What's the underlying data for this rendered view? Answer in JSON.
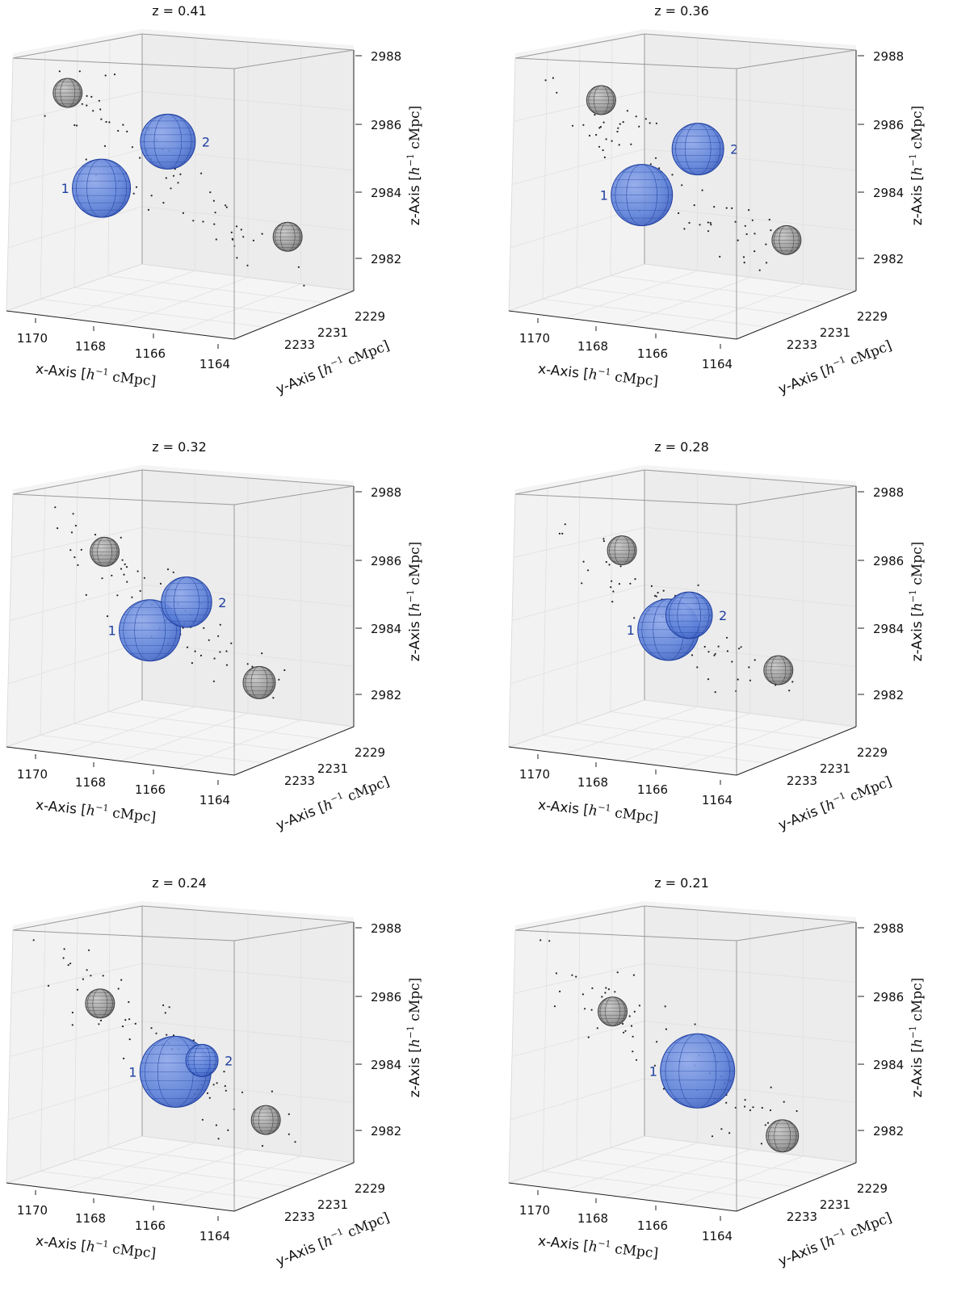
{
  "figure": {
    "x_ticks": [
      "1170",
      "1168",
      "1166",
      "1164"
    ],
    "y_ticks": [
      "2229",
      "2231",
      "2233"
    ],
    "z_ticks": [
      "2988",
      "2986",
      "2984",
      "2982"
    ],
    "xlabel_prefix": "x-Axis [",
    "ylabel_prefix": "y-Axis [",
    "zlabel_prefix": "z-Axis [",
    "unit_h": "h",
    "unit_exp": "−1",
    "unit_tail": "cMpc]",
    "colors": {
      "highlight": "#4a6fd0",
      "highlight_edge": "#1f3fa0",
      "label": "#1f3fa0",
      "neutral": "#8c8c8c",
      "neutral_edge": "#404040",
      "points": "#222222"
    }
  },
  "chart_data": [
    {
      "type": "scatter3d",
      "title": "z = 0.41",
      "xlim": [
        1164,
        1171
      ],
      "ylim": [
        2228,
        2234
      ],
      "zlim": [
        2981,
        2988
      ],
      "spheres": [
        {
          "label": "1",
          "highlight": true,
          "x": 1169.4,
          "y": 2231.0,
          "z": 2984.3,
          "r": 0.9
        },
        {
          "label": "2",
          "highlight": true,
          "x": 1167.2,
          "y": 2230.2,
          "z": 2985.6,
          "r": 0.85
        },
        {
          "label": "",
          "highlight": false,
          "x": 1170.2,
          "y": 2230.5,
          "z": 2987.4,
          "r": 0.45
        },
        {
          "label": "",
          "highlight": false,
          "x": 1164.3,
          "y": 2231.8,
          "z": 2982.4,
          "r": 0.45
        }
      ],
      "seed": 11
    },
    {
      "type": "scatter3d",
      "title": "z = 0.36",
      "xlim": [
        1164,
        1171
      ],
      "ylim": [
        2228,
        2234
      ],
      "zlim": [
        2981,
        2988
      ],
      "spheres": [
        {
          "label": "1",
          "highlight": true,
          "x": 1168.3,
          "y": 2231.0,
          "z": 2984.0,
          "r": 0.95
        },
        {
          "label": "2",
          "highlight": true,
          "x": 1166.4,
          "y": 2230.2,
          "z": 2985.3,
          "r": 0.8
        },
        {
          "label": "",
          "highlight": false,
          "x": 1169.3,
          "y": 2230.5,
          "z": 2987.1,
          "r": 0.45
        },
        {
          "label": "",
          "highlight": false,
          "x": 1164.4,
          "y": 2231.8,
          "z": 2982.3,
          "r": 0.45
        }
      ],
      "seed": 23
    },
    {
      "type": "scatter3d",
      "title": "z = 0.32",
      "xlim": [
        1164,
        1171
      ],
      "ylim": [
        2228,
        2234
      ],
      "zlim": [
        2981,
        2988
      ],
      "spheres": [
        {
          "label": "1",
          "highlight": true,
          "x": 1168.0,
          "y": 2231.0,
          "z": 2984.0,
          "r": 0.95
        },
        {
          "label": "2",
          "highlight": true,
          "x": 1166.8,
          "y": 2230.6,
          "z": 2984.8,
          "r": 0.78
        },
        {
          "label": "",
          "highlight": false,
          "x": 1169.2,
          "y": 2230.7,
          "z": 2986.6,
          "r": 0.45
        },
        {
          "label": "",
          "highlight": false,
          "x": 1165.4,
          "y": 2232.6,
          "z": 2982.2,
          "r": 0.5
        }
      ],
      "seed": 37
    },
    {
      "type": "scatter3d",
      "title": "z = 0.28",
      "xlim": [
        1164,
        1171
      ],
      "ylim": [
        2228,
        2234
      ],
      "zlim": [
        2981,
        2988
      ],
      "spheres": [
        {
          "label": "1",
          "highlight": true,
          "x": 1167.6,
          "y": 2231.2,
          "z": 2984.0,
          "r": 0.95
        },
        {
          "label": "2",
          "highlight": true,
          "x": 1166.9,
          "y": 2230.9,
          "z": 2984.4,
          "r": 0.72
        },
        {
          "label": "",
          "highlight": false,
          "x": 1168.7,
          "y": 2230.5,
          "z": 2986.6,
          "r": 0.45
        },
        {
          "label": "",
          "highlight": false,
          "x": 1164.6,
          "y": 2231.7,
          "z": 2982.5,
          "r": 0.45
        }
      ],
      "seed": 41
    },
    {
      "type": "scatter3d",
      "title": "z = 0.24",
      "xlim": [
        1164,
        1171
      ],
      "ylim": [
        2228,
        2234
      ],
      "zlim": [
        2981,
        2988
      ],
      "spheres": [
        {
          "label": "1",
          "highlight": true,
          "x": 1167.4,
          "y": 2231.4,
          "z": 2983.8,
          "r": 1.1
        },
        {
          "label": "2",
          "highlight": true,
          "x": 1166.6,
          "y": 2231.3,
          "z": 2984.1,
          "r": 0.5
        },
        {
          "label": "",
          "highlight": false,
          "x": 1169.3,
          "y": 2230.6,
          "z": 2986.1,
          "r": 0.45
        },
        {
          "label": "",
          "highlight": false,
          "x": 1165.0,
          "y": 2232.0,
          "z": 2982.1,
          "r": 0.45
        }
      ],
      "seed": 53
    },
    {
      "type": "scatter3d",
      "title": "z = 0.21",
      "xlim": [
        1164,
        1171
      ],
      "ylim": [
        2228,
        2234
      ],
      "zlim": [
        2981,
        2988
      ],
      "spheres": [
        {
          "label": "1",
          "highlight": true,
          "x": 1166.9,
          "y": 2231.6,
          "z": 2983.8,
          "r": 1.15
        },
        {
          "label": "",
          "highlight": false,
          "x": 1168.9,
          "y": 2230.3,
          "z": 2985.8,
          "r": 0.45
        },
        {
          "label": "",
          "highlight": false,
          "x": 1164.8,
          "y": 2232.6,
          "z": 2981.6,
          "r": 0.5
        }
      ],
      "seed": 67
    }
  ]
}
